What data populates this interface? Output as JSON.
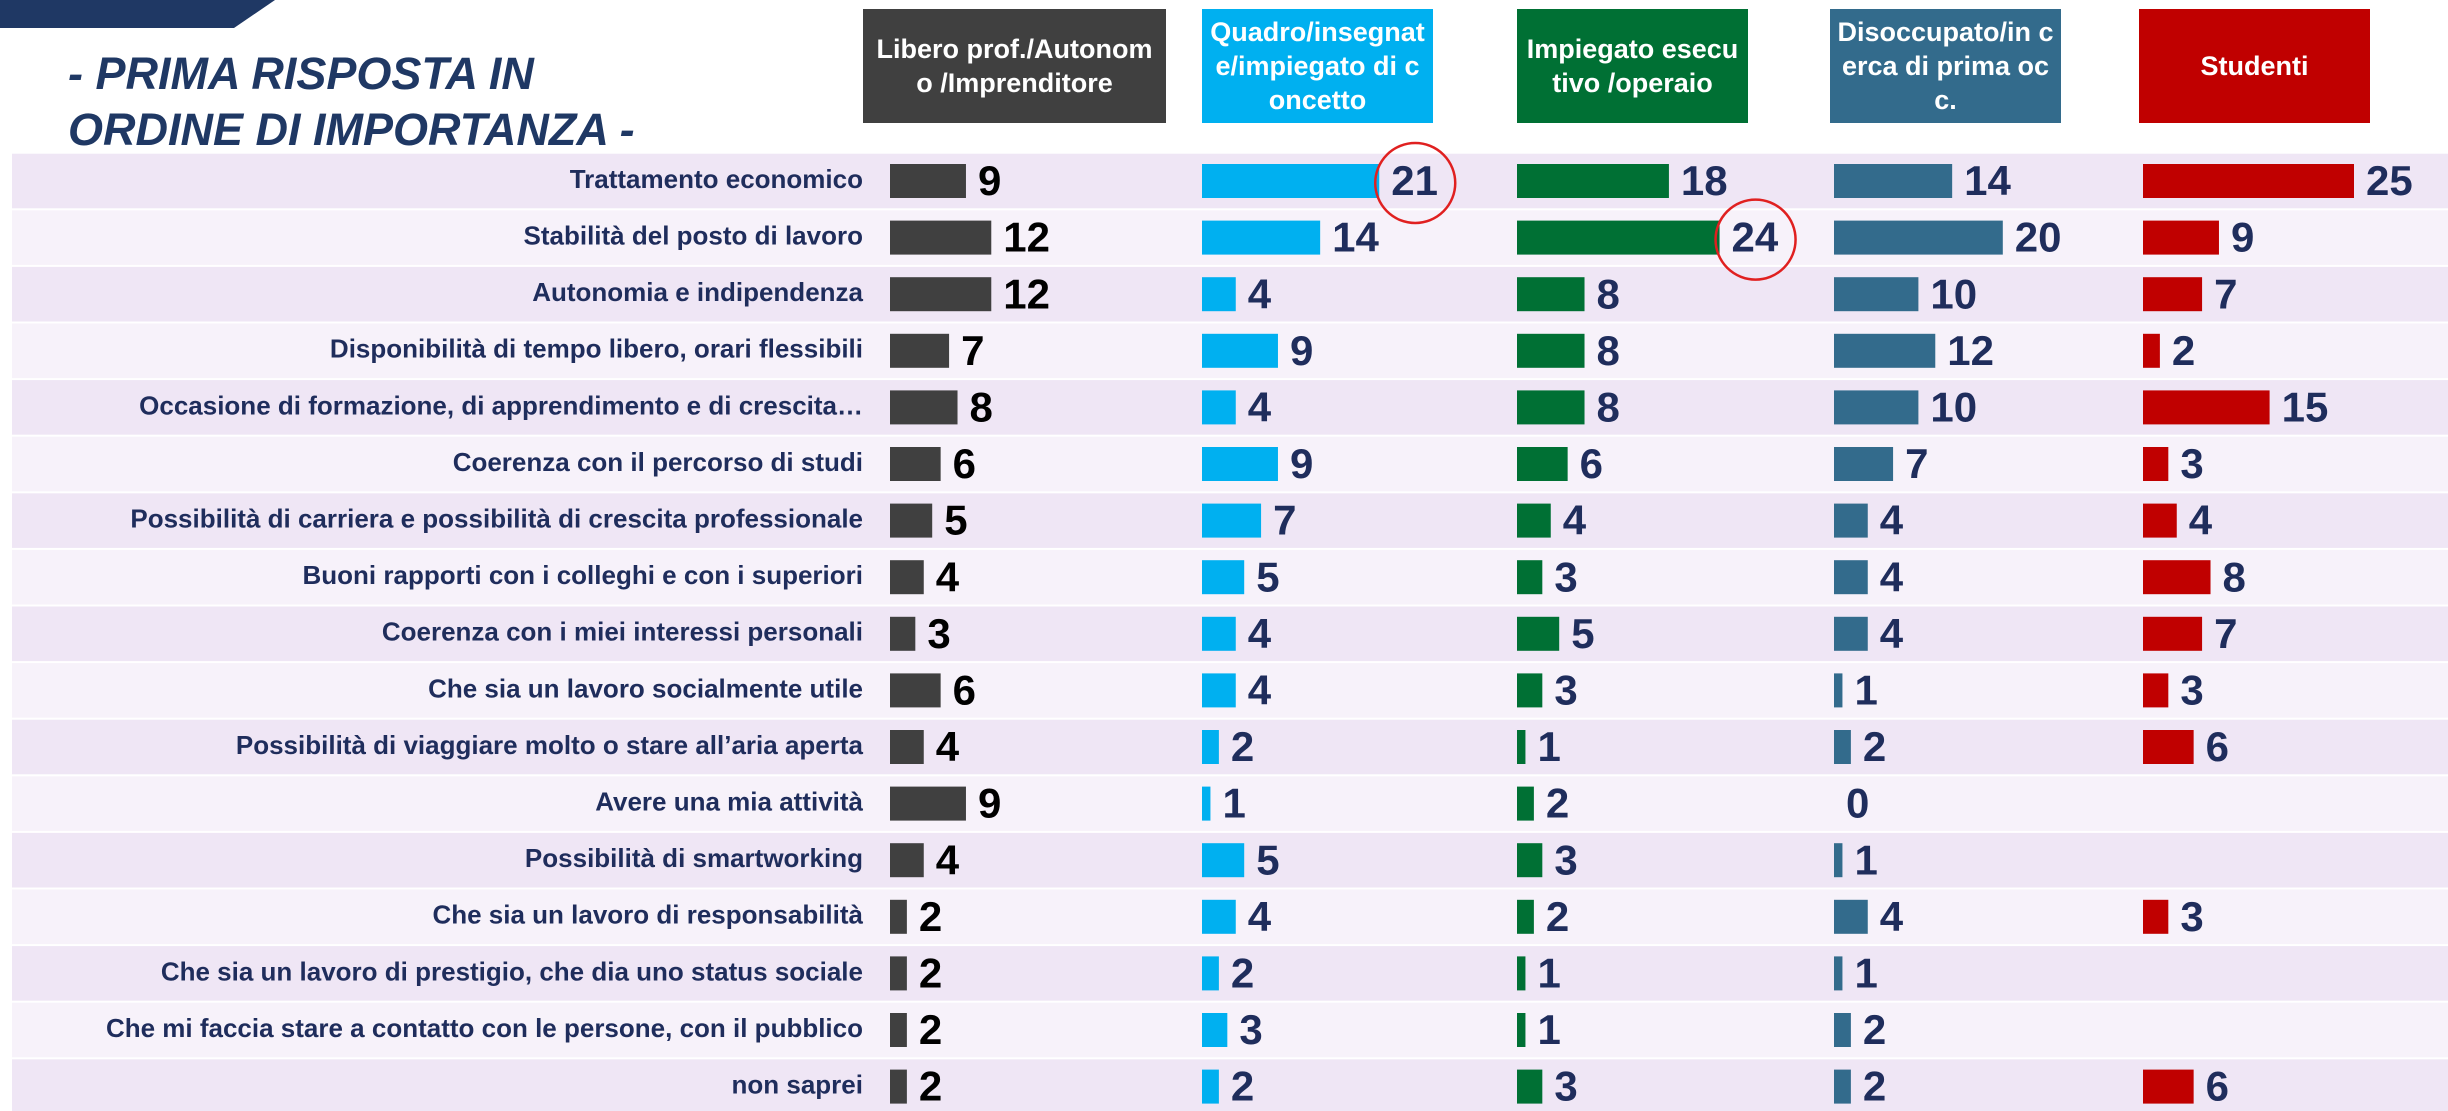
{
  "chart_data": {
    "type": "bar",
    "orientation": "horizontal",
    "title": "- PRIMA RISPOSTA IN ORDINE DI IMPORTANZA -",
    "categories": [
      "Trattamento economico",
      "Stabilità del posto di lavoro",
      "Autonomia e indipendenza",
      "Disponibilità di tempo libero, orari flessibili",
      "Occasione di formazione, di apprendimento e di crescita…",
      "Coerenza con il percorso di studi",
      "Possibilità di carriera e possibilità di crescita professionale",
      "Buoni rapporti con i colleghi e con i superiori",
      "Coerenza con i miei interessi personali",
      "Che sia un lavoro socialmente utile",
      "Possibilità di viaggiare molto o stare all’aria aperta",
      "Avere una mia attività",
      "Possibilità di smartworking",
      "Che sia un lavoro di responsabilità",
      "Che sia un lavoro di prestigio, che dia uno status sociale",
      "Che mi faccia stare a contatto con le persone, con il pubblico",
      "non saprei"
    ],
    "xlim": [
      0,
      25
    ],
    "series": [
      {
        "name": "Libero prof./Autonomo /Imprenditore",
        "color": "#404040",
        "values": [
          9,
          12,
          12,
          7,
          8,
          6,
          5,
          4,
          3,
          6,
          4,
          9,
          4,
          2,
          2,
          2,
          2
        ]
      },
      {
        "name": "Quadro/insegnate/impiegato di concetto",
        "color": "#00b0f0",
        "values": [
          21,
          14,
          4,
          9,
          4,
          9,
          7,
          5,
          4,
          4,
          2,
          1,
          5,
          4,
          2,
          3,
          2
        ]
      },
      {
        "name": "Impiegato esecutivo /operaio",
        "color": "#007034",
        "values": [
          18,
          24,
          8,
          8,
          8,
          6,
          4,
          3,
          5,
          3,
          1,
          2,
          3,
          2,
          1,
          1,
          3
        ]
      },
      {
        "name": "Disoccupato/in cerca di prima occ.",
        "color": "#336b8c",
        "values": [
          14,
          20,
          10,
          12,
          10,
          7,
          4,
          4,
          4,
          1,
          2,
          0,
          1,
          4,
          1,
          2,
          2
        ]
      },
      {
        "name": "Studenti",
        "color": "#c00000",
        "values": [
          25,
          9,
          7,
          2,
          15,
          3,
          4,
          8,
          7,
          3,
          6,
          null,
          null,
          3,
          null,
          null,
          6
        ]
      }
    ]
  }
}
